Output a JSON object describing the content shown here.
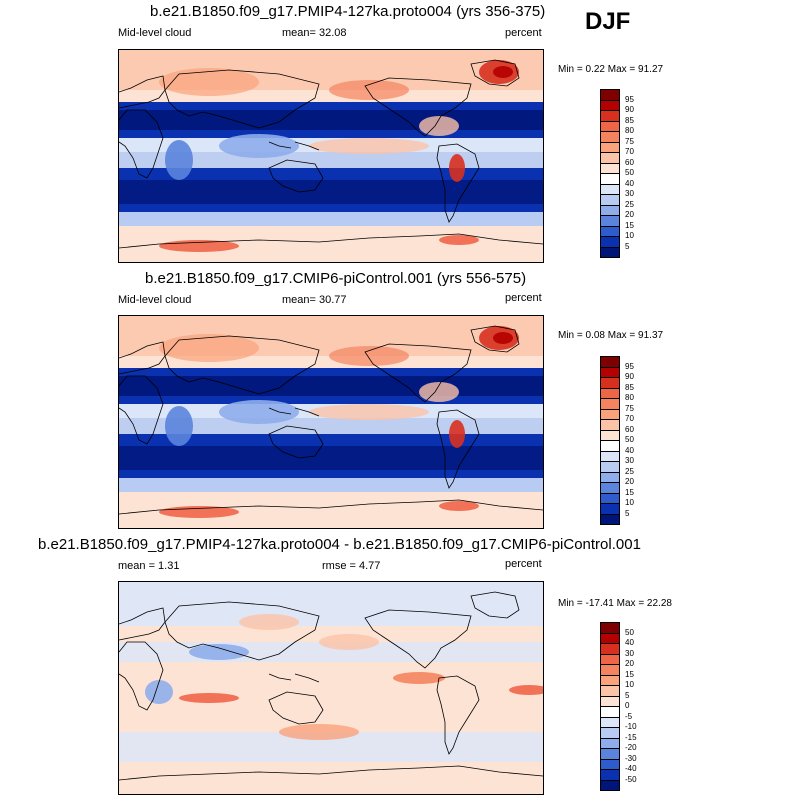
{
  "season": "DJF",
  "panels": [
    {
      "id": "top",
      "title": "b.e21.B1850.f09_g17.PMIP4-127ka.proto004 (yrs 356-375)",
      "left_label": "Mid-level cloud",
      "center_label": "mean=  32.08",
      "right_label": "percent",
      "minmax": "Min =  0.22 Max =  91.27",
      "field": "absolute",
      "colorbar": {
        "labels": [
          "95",
          "90",
          "85",
          "80",
          "75",
          "70",
          "60",
          "50",
          "40",
          "30",
          "25",
          "20",
          "15",
          "10",
          "5"
        ],
        "colors": [
          "#7f0000",
          "#b30000",
          "#d7301f",
          "#ef6548",
          "#f4845f",
          "#f9a27c",
          "#fbc3a8",
          "#fde3d4",
          "#ffffff",
          "#dbe6f9",
          "#b7cbf3",
          "#8fadeb",
          "#5b84dd",
          "#2f5ccd",
          "#0a32b0",
          "#00157a"
        ]
      }
    },
    {
      "id": "middle",
      "title": "b.e21.B1850.f09_g17.CMIP6-piControl.001 (yrs 556-575)",
      "left_label": "Mid-level cloud",
      "center_label": "mean=  30.77",
      "right_label": "percent",
      "minmax": "Min =  0.08 Max =  91.37",
      "field": "absolute",
      "colorbar": {
        "labels": [
          "95",
          "90",
          "85",
          "80",
          "75",
          "70",
          "60",
          "50",
          "40",
          "30",
          "25",
          "20",
          "15",
          "10",
          "5"
        ],
        "colors": [
          "#7f0000",
          "#b30000",
          "#d7301f",
          "#ef6548",
          "#f4845f",
          "#f9a27c",
          "#fbc3a8",
          "#fde3d4",
          "#ffffff",
          "#dbe6f9",
          "#b7cbf3",
          "#8fadeb",
          "#5b84dd",
          "#2f5ccd",
          "#0a32b0",
          "#00157a"
        ]
      }
    },
    {
      "id": "bottom",
      "title": "b.e21.B1850.f09_g17.PMIP4-127ka.proto004 - b.e21.B1850.f09_g17.CMIP6-piControl.001",
      "left_label": "mean =   1.31",
      "center_label": "rmse =   4.77",
      "right_label": "percent",
      "minmax": "Min = -17.41 Max =  22.28",
      "field": "difference",
      "colorbar": {
        "labels": [
          "50",
          "40",
          "30",
          "20",
          "15",
          "10",
          "5",
          "0",
          "-5",
          "-10",
          "-15",
          "-20",
          "-30",
          "-40",
          "-50"
        ],
        "colors": [
          "#7f0000",
          "#b30000",
          "#d7301f",
          "#ef6548",
          "#f4845f",
          "#f9a27c",
          "#fbc3a8",
          "#fde3d4",
          "#ffffff",
          "#dbe6f9",
          "#b7cbf3",
          "#8fadeb",
          "#5b84dd",
          "#2f5ccd",
          "#0a32b0",
          "#00157a"
        ]
      }
    }
  ]
}
